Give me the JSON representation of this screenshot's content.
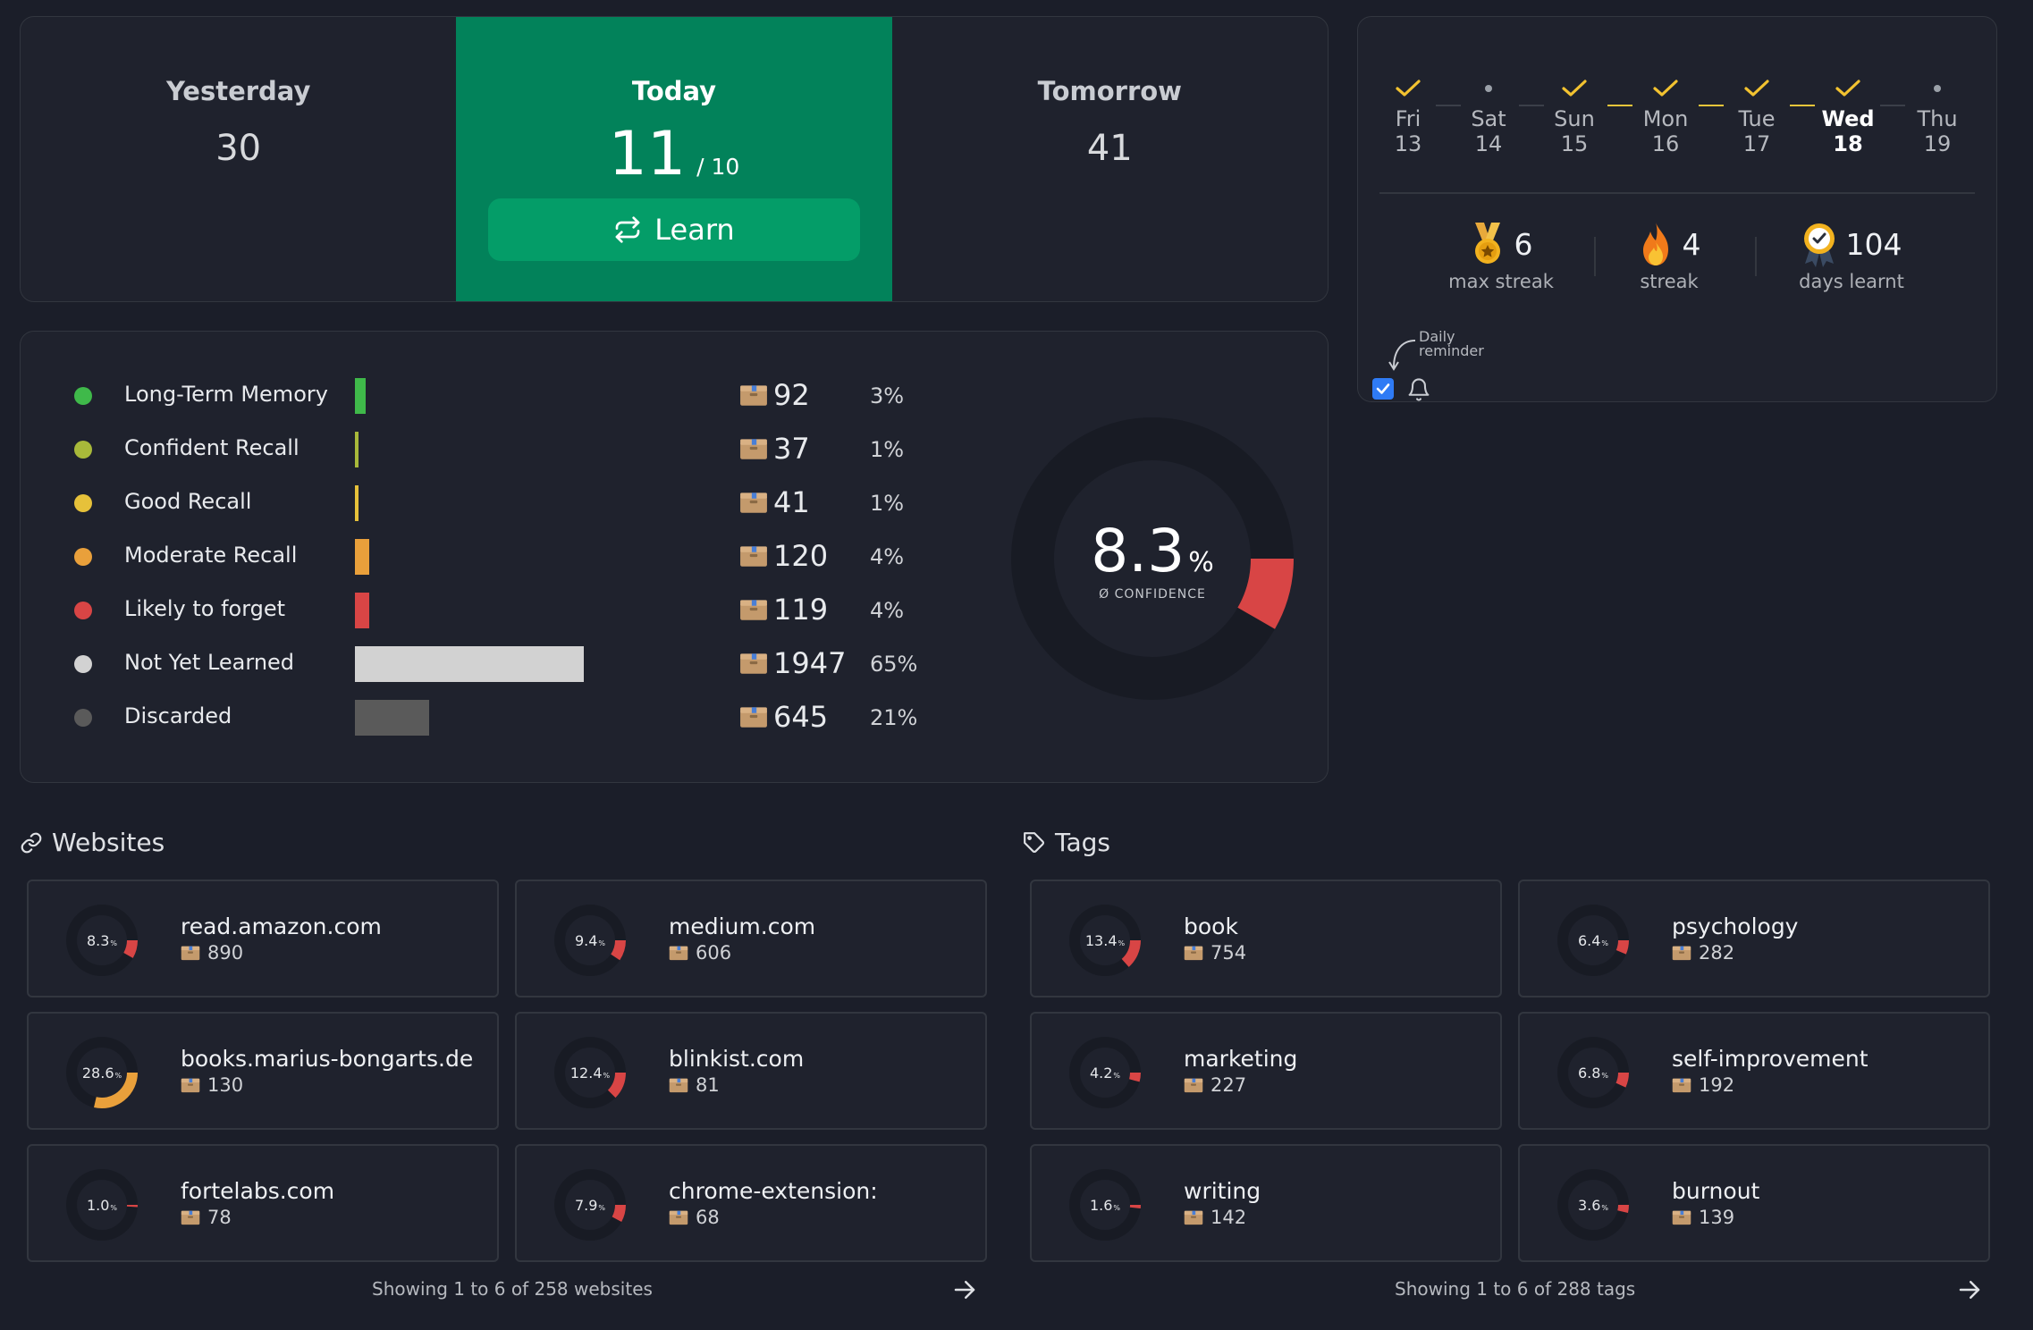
{
  "days": {
    "yesterday": {
      "label": "Yesterday",
      "value": "30"
    },
    "today": {
      "label": "Today",
      "value": "11",
      "goal": "/ 10",
      "button": "Learn"
    },
    "tomorrow": {
      "label": "Tomorrow",
      "value": "41"
    }
  },
  "week": [
    {
      "name": "Fri",
      "num": "13",
      "done": true
    },
    {
      "name": "Sat",
      "num": "14",
      "done": false
    },
    {
      "name": "Sun",
      "num": "15",
      "done": true
    },
    {
      "name": "Mon",
      "num": "16",
      "done": true
    },
    {
      "name": "Tue",
      "num": "17",
      "done": true
    },
    {
      "name": "Wed",
      "num": "18",
      "done": true,
      "current": true
    },
    {
      "name": "Thu",
      "num": "19",
      "done": false
    }
  ],
  "stats": {
    "max_streak": {
      "value": "6",
      "label": "max streak",
      "icon": "medal-icon"
    },
    "streak": {
      "value": "4",
      "label": "streak",
      "icon": "flame-icon"
    },
    "days_learnt": {
      "value": "104",
      "label": "days learnt",
      "icon": "badge-icon"
    }
  },
  "reminder": {
    "line1": "Daily",
    "line2": "reminder",
    "checked": true
  },
  "memory": [
    {
      "name": "Long-Term Memory",
      "count": "92",
      "pct": "3%",
      "fraction": 0.03,
      "color": "#3fb94a"
    },
    {
      "name": "Confident Recall",
      "count": "37",
      "pct": "1%",
      "fraction": 0.01,
      "color": "#a8b93a"
    },
    {
      "name": "Good Recall",
      "count": "41",
      "pct": "1%",
      "fraction": 0.01,
      "color": "#e6c13a"
    },
    {
      "name": "Moderate Recall",
      "count": "120",
      "pct": "4%",
      "fraction": 0.04,
      "color": "#e9a03b"
    },
    {
      "name": "Likely to forget",
      "count": "119",
      "pct": "4%",
      "fraction": 0.04,
      "color": "#d84545"
    },
    {
      "name": "Not Yet Learned",
      "count": "1947",
      "pct": "65%",
      "fraction": 0.65,
      "color": "#d2d2d2"
    },
    {
      "name": "Discarded",
      "count": "645",
      "pct": "21%",
      "fraction": 0.21,
      "color": "#5a5a5a"
    }
  ],
  "confidence": {
    "value": "8.3",
    "unit": "%",
    "label": "Ø CONFIDENCE",
    "fraction": 0.083,
    "color": "#d84545"
  },
  "websites": {
    "title": "Websites",
    "footer": "Showing 1 to 6 of 258 websites",
    "items": [
      {
        "name": "read.amazon.com",
        "count": "890",
        "conf": "8.3",
        "fraction": 0.083,
        "color": "#d84545"
      },
      {
        "name": "medium.com",
        "count": "606",
        "conf": "9.4",
        "fraction": 0.094,
        "color": "#d84545"
      },
      {
        "name": "books.marius-bongarts.de",
        "count": "130",
        "conf": "28.6",
        "fraction": 0.286,
        "color": "#e9a03b"
      },
      {
        "name": "blinkist.com",
        "count": "81",
        "conf": "12.4",
        "fraction": 0.124,
        "color": "#d84545"
      },
      {
        "name": "fortelabs.com",
        "count": "78",
        "conf": "1.0",
        "fraction": 0.01,
        "color": "#d84545"
      },
      {
        "name": "chrome-extension:",
        "count": "68",
        "conf": "7.9",
        "fraction": 0.079,
        "color": "#d84545"
      }
    ]
  },
  "tags": {
    "title": "Tags",
    "footer": "Showing 1 to 6 of 288 tags",
    "items": [
      {
        "name": "book",
        "count": "754",
        "conf": "13.4",
        "fraction": 0.134,
        "color": "#d84545"
      },
      {
        "name": "psychology",
        "count": "282",
        "conf": "6.4",
        "fraction": 0.064,
        "color": "#d84545"
      },
      {
        "name": "marketing",
        "count": "227",
        "conf": "4.2",
        "fraction": 0.042,
        "color": "#d84545"
      },
      {
        "name": "self-improvement",
        "count": "192",
        "conf": "6.8",
        "fraction": 0.068,
        "color": "#d84545"
      },
      {
        "name": "writing",
        "count": "142",
        "conf": "1.6",
        "fraction": 0.016,
        "color": "#d84545"
      },
      {
        "name": "burnout",
        "count": "139",
        "conf": "3.6",
        "fraction": 0.036,
        "color": "#d84545"
      }
    ]
  }
}
